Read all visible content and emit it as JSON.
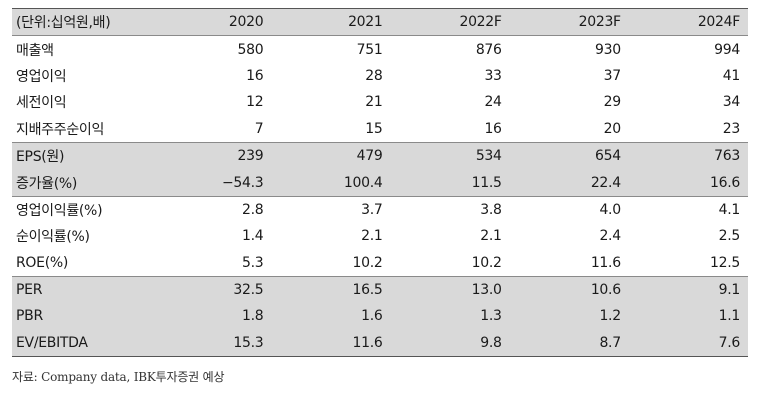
{
  "table": {
    "header": [
      "(단위:십억원,배)",
      "2020",
      "2021",
      "2022F",
      "2023F",
      "2024F"
    ],
    "rows": [
      {
        "label": "매출액",
        "values": [
          "580",
          "751",
          "876",
          "930",
          "994"
        ]
      },
      {
        "label": "영업이익",
        "values": [
          "16",
          "28",
          "33",
          "37",
          "41"
        ]
      },
      {
        "label": "세전이익",
        "values": [
          "12",
          "21",
          "24",
          "29",
          "34"
        ]
      },
      {
        "label": "지배주주순이익",
        "values": [
          "7",
          "15",
          "16",
          "20",
          "23"
        ]
      },
      {
        "label": "EPS(원)",
        "values": [
          "239",
          "479",
          "534",
          "654",
          "763"
        ]
      },
      {
        "label": "증가율(%)",
        "values": [
          "−54.3",
          "100.4",
          "11.5",
          "22.4",
          "16.6"
        ]
      },
      {
        "label": "영업이익률(%)",
        "values": [
          "2.8",
          "3.7",
          "3.8",
          "4.0",
          "4.1"
        ]
      },
      {
        "label": "순이익률(%)",
        "values": [
          "1.4",
          "2.1",
          "2.1",
          "2.4",
          "2.5"
        ]
      },
      {
        "label": "ROE(%)",
        "values": [
          "5.3",
          "10.2",
          "10.2",
          "11.6",
          "12.5"
        ]
      },
      {
        "label": "PER",
        "values": [
          "32.5",
          "16.5",
          "13.0",
          "10.6",
          "9.1"
        ]
      },
      {
        "label": "PBR",
        "values": [
          "1.8",
          "1.6",
          "1.3",
          "1.2",
          "1.1"
        ]
      },
      {
        "label": "EV/EBITDA",
        "values": [
          "15.3",
          "11.6",
          "9.8",
          "8.7",
          "7.6"
        ]
      }
    ]
  },
  "footer": {
    "source": "자료: Company data, IBK투자증권 예상"
  }
}
